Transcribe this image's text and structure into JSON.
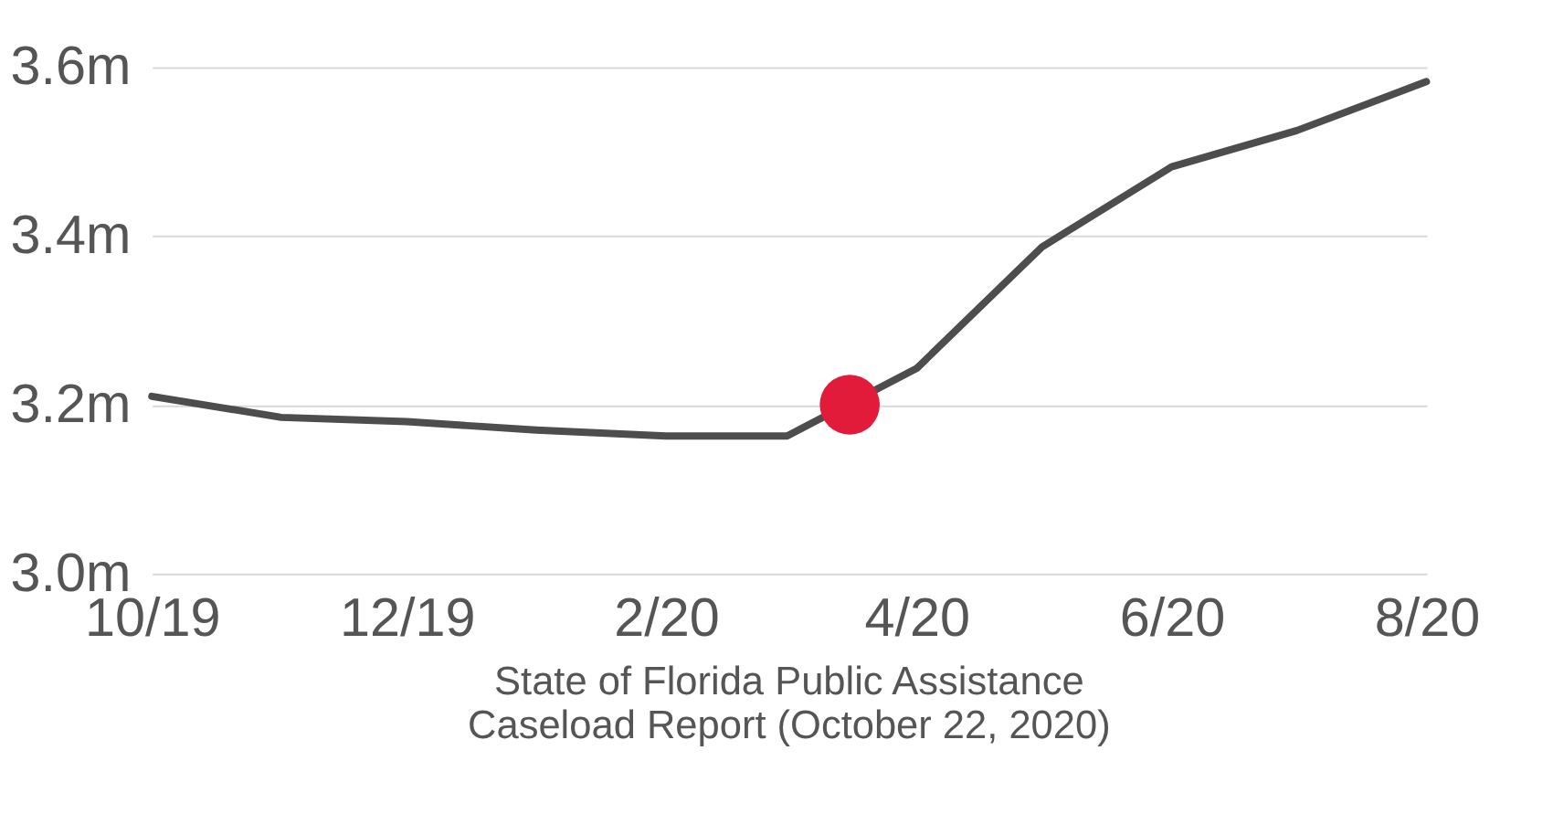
{
  "chart_data": {
    "type": "line",
    "x": [
      "2019-10",
      "2019-11",
      "2019-12",
      "2020-01",
      "2020-02",
      "2020-03",
      "2020-04",
      "2020-05",
      "2020-06",
      "2020-07",
      "2020-08"
    ],
    "series": [
      {
        "color": "#4d4d4d",
        "values": [
          3.21,
          3.185,
          3.18,
          3.17,
          3.163,
          3.163,
          3.243,
          3.387,
          3.482,
          3.525,
          3.583
        ]
      },
      {
        "type": "scatter",
        "color": "#e31b3b",
        "x": [
          "2020-03-16"
        ],
        "values": [
          3.2
        ]
      }
    ],
    "xlim": [
      "2019-10-01",
      "2020-08-01"
    ],
    "xticks": [
      {
        "value": "2019-10",
        "label": "10/19"
      },
      {
        "value": "2019-12",
        "label": "12/19"
      },
      {
        "value": "2020-02",
        "label": "2/20"
      },
      {
        "value": "2020-04",
        "label": "4/20"
      },
      {
        "value": "2020-06",
        "label": "6/20"
      },
      {
        "value": "2020-08",
        "label": "8/20"
      }
    ],
    "ylim": [
      3.0,
      3.6
    ],
    "yticks": [
      {
        "value": 3.0,
        "label": "3.0m"
      },
      {
        "value": 3.2,
        "label": "3.2m"
      },
      {
        "value": 3.4,
        "label": "3.4m"
      },
      {
        "value": 3.6,
        "label": "3.6m"
      }
    ],
    "grid": "y",
    "annotations": [
      "State of Florida Public Assistance Caseload Report (October 22, 2020)"
    ]
  }
}
